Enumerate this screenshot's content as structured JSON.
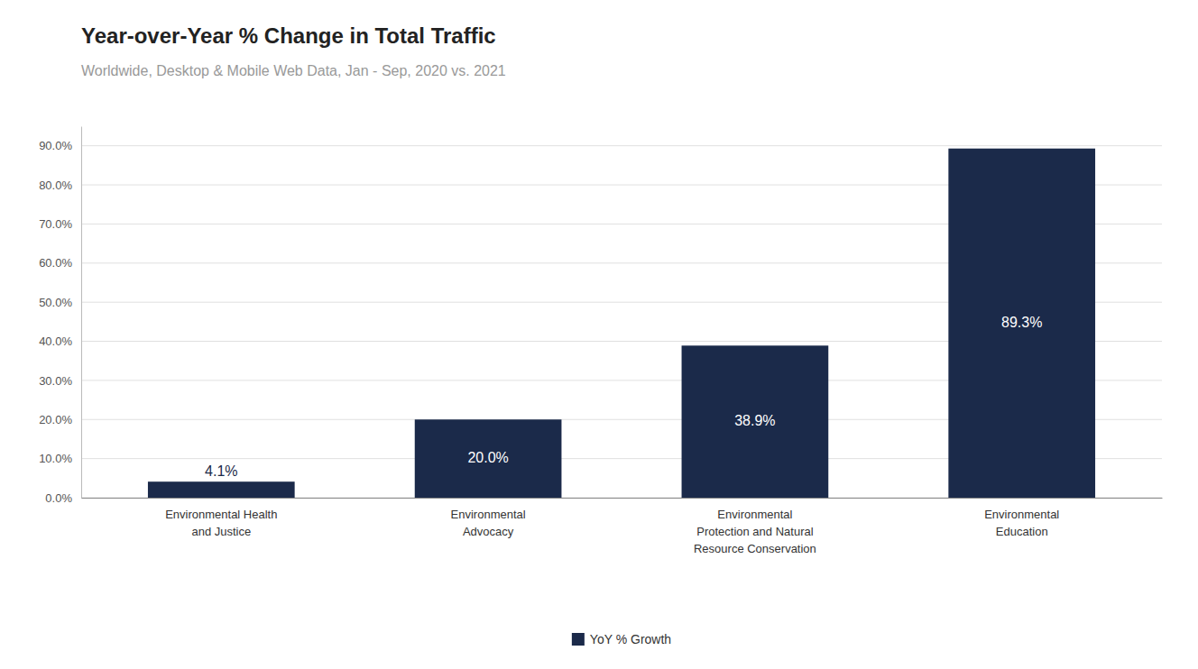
{
  "chart_data": {
    "type": "bar",
    "title": "Year-over-Year % Change in Total Traffic",
    "subtitle": "Worldwide, Desktop & Mobile Web Data, Jan - Sep, 2020 vs. 2021",
    "categories": [
      "Environmental Health\nand Justice",
      "Environmental\nAdvocacy",
      "Environmental\nProtection and Natural\nResource Conservation",
      "Environmental\nEducation"
    ],
    "series": [
      {
        "name": "YoY % Growth",
        "color": "#1b2a4a",
        "values": [
          4.1,
          20.0,
          38.9,
          89.3
        ],
        "value_labels": [
          "4.1%",
          "20.0%",
          "38.9%",
          "89.3%"
        ]
      }
    ],
    "ylim": [
      0,
      95
    ],
    "yticks": [
      {
        "value": 0,
        "label": "0.0%"
      },
      {
        "value": 10,
        "label": "10.0%"
      },
      {
        "value": 20,
        "label": "20.0%"
      },
      {
        "value": 30,
        "label": "30.0%"
      },
      {
        "value": 40,
        "label": "40.0%"
      },
      {
        "value": 50,
        "label": "50.0%"
      },
      {
        "value": 60,
        "label": "60.0%"
      },
      {
        "value": 70,
        "label": "70.0%"
      },
      {
        "value": 80,
        "label": "80.0%"
      },
      {
        "value": 90,
        "label": "90.0%"
      }
    ],
    "grid": true,
    "legend": "bottom",
    "data_labels": true
  }
}
